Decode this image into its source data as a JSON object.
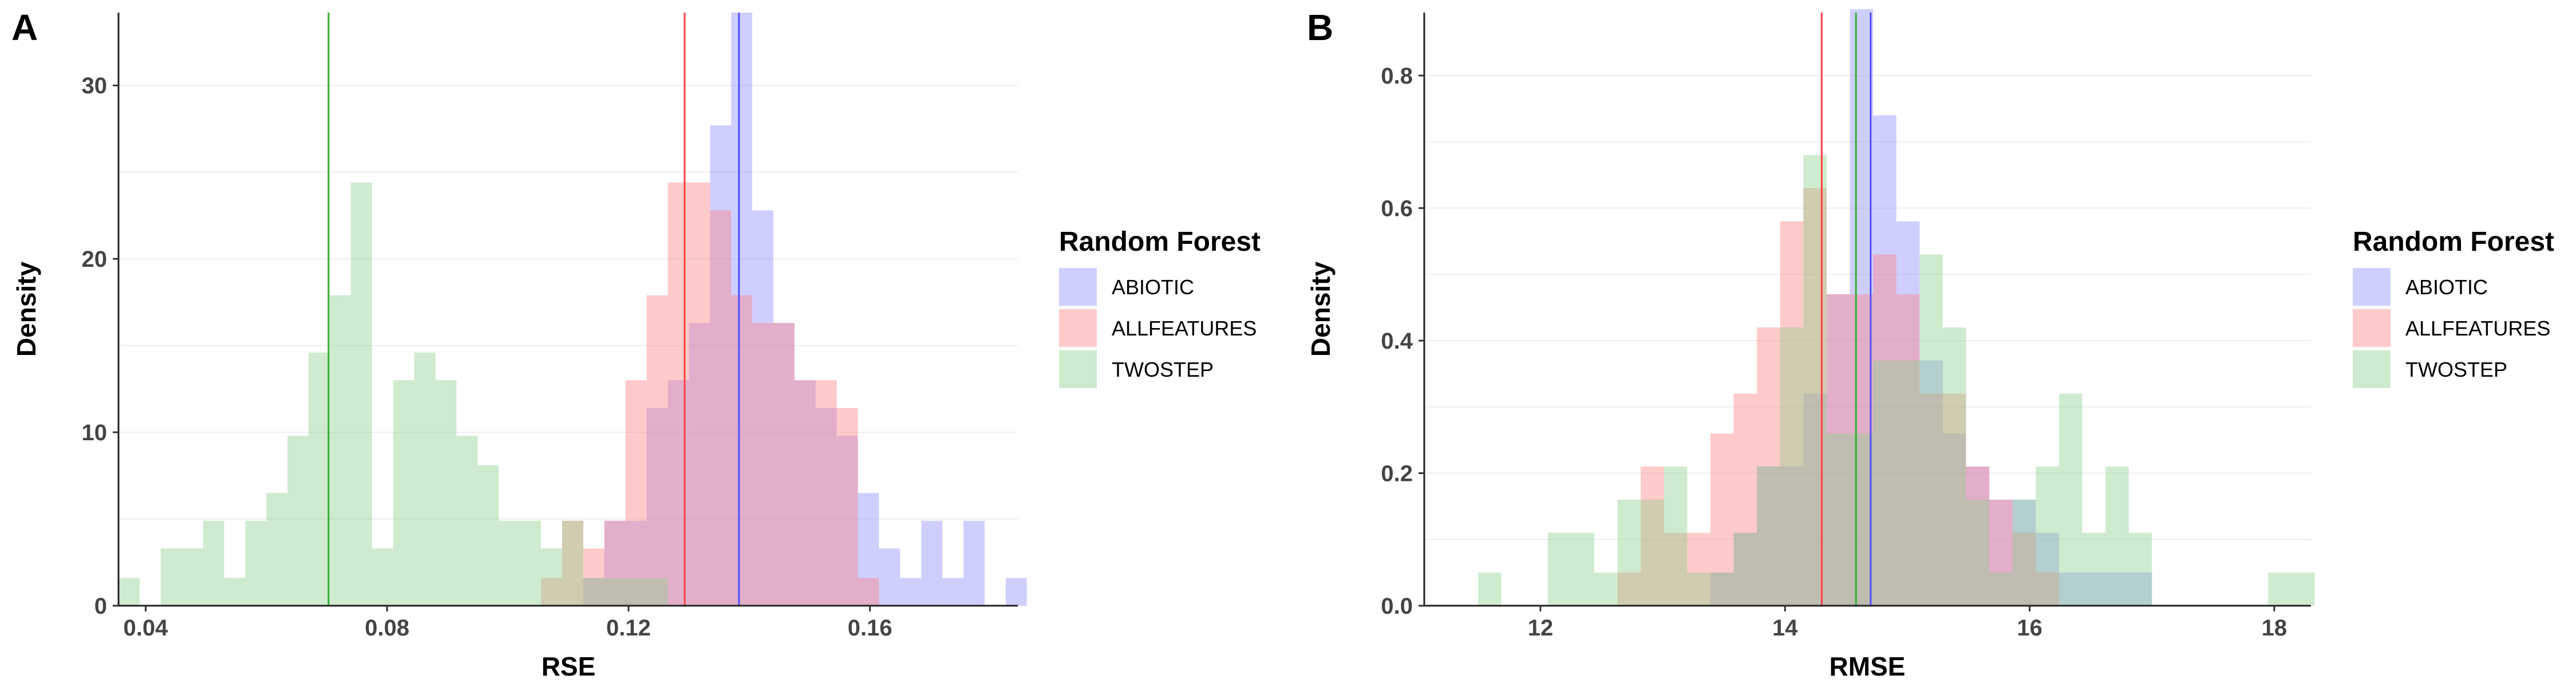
{
  "chart_data": [
    {
      "type": "histogram",
      "panel_label": "A",
      "xlabel": "RSE",
      "ylabel": "Density",
      "xlim": [
        0.0355,
        0.1845
      ],
      "ylim": [
        0,
        34.2
      ],
      "x_ticks": [
        0.04,
        0.08,
        0.12,
        0.16
      ],
      "x_tick_labels": [
        "0.04",
        "0.08",
        "0.12",
        "0.16"
      ],
      "y_ticks": [
        0,
        10,
        20,
        30
      ],
      "y_tick_labels": [
        "0",
        "10",
        "20",
        "30"
      ],
      "grid": "horizontal",
      "legend": {
        "title": "Random Forest",
        "placement": "right",
        "entries": [
          "ABIOTIC",
          "ALLFEATURES",
          "TWOSTEP"
        ]
      },
      "bin_width": 0.0035,
      "series": [
        {
          "name": "ABIOTIC",
          "color": "#8c8cff",
          "bins": [
            [
              0.1125,
              1.6
            ],
            [
              0.116,
              4.9
            ],
            [
              0.1195,
              4.9
            ],
            [
              0.123,
              11.4
            ],
            [
              0.1265,
              13.0
            ],
            [
              0.13,
              16.3
            ],
            [
              0.1335,
              27.7
            ],
            [
              0.137,
              34.2
            ],
            [
              0.1405,
              22.8
            ],
            [
              0.144,
              16.3
            ],
            [
              0.1475,
              13.0
            ],
            [
              0.151,
              11.4
            ],
            [
              0.1545,
              9.8
            ],
            [
              0.158,
              6.5
            ],
            [
              0.1615,
              3.3
            ],
            [
              0.165,
              1.6
            ],
            [
              0.1685,
              4.9
            ],
            [
              0.172,
              1.6
            ],
            [
              0.1755,
              4.9
            ],
            [
              0.179,
              0
            ],
            [
              0.1825,
              1.6
            ]
          ],
          "mean": 0.1383
        },
        {
          "name": "ALLFEATURES",
          "color": "#ff8080",
          "bins": [
            [
              0.1055,
              1.6
            ],
            [
              0.109,
              4.9
            ],
            [
              0.1125,
              3.3
            ],
            [
              0.116,
              4.9
            ],
            [
              0.1195,
              13.0
            ],
            [
              0.123,
              17.9
            ],
            [
              0.1265,
              24.4
            ],
            [
              0.13,
              24.4
            ],
            [
              0.1335,
              22.8
            ],
            [
              0.137,
              17.9
            ],
            [
              0.1405,
              16.3
            ],
            [
              0.144,
              16.3
            ],
            [
              0.1475,
              13.0
            ],
            [
              0.151,
              13.0
            ],
            [
              0.1545,
              11.4
            ],
            [
              0.158,
              1.6
            ]
          ],
          "mean": 0.1293
        },
        {
          "name": "TWOSTEP",
          "color": "#8cd08c",
          "bins": [
            [
              0.0355,
              1.6
            ],
            [
              0.039,
              0
            ],
            [
              0.0425,
              3.3
            ],
            [
              0.046,
              3.3
            ],
            [
              0.0495,
              4.9
            ],
            [
              0.053,
              1.6
            ],
            [
              0.0565,
              4.9
            ],
            [
              0.06,
              6.5
            ],
            [
              0.0635,
              9.8
            ],
            [
              0.067,
              14.6
            ],
            [
              0.0705,
              17.9
            ],
            [
              0.074,
              24.4
            ],
            [
              0.0775,
              3.3
            ],
            [
              0.081,
              13.0
            ],
            [
              0.0845,
              14.6
            ],
            [
              0.088,
              13.0
            ],
            [
              0.0915,
              9.8
            ],
            [
              0.095,
              8.1
            ],
            [
              0.0985,
              4.9
            ],
            [
              0.102,
              4.9
            ],
            [
              0.1055,
              3.3
            ],
            [
              0.109,
              4.9
            ],
            [
              0.1125,
              1.6
            ],
            [
              0.116,
              1.6
            ],
            [
              0.1195,
              1.6
            ],
            [
              0.123,
              1.6
            ],
            [
              0.1265,
              0
            ],
            [
              0.13,
              0
            ]
          ],
          "mean": 0.0703
        }
      ]
    },
    {
      "type": "histogram",
      "panel_label": "B",
      "xlabel": "RMSE",
      "ylabel": "Density",
      "xlim": [
        11.05,
        18.3
      ],
      "ylim": [
        0,
        0.895
      ],
      "x_ticks": [
        12,
        14,
        16,
        18
      ],
      "x_tick_labels": [
        "12",
        "14",
        "16",
        "18"
      ],
      "y_ticks": [
        0.0,
        0.2,
        0.4,
        0.6,
        0.8
      ],
      "y_tick_labels": [
        "0.0",
        "0.2",
        "0.4",
        "0.6",
        "0.8"
      ],
      "grid": "horizontal",
      "legend": {
        "title": "Random Forest",
        "placement": "right",
        "entries": [
          "ABIOTIC",
          "ALLFEATURES",
          "TWOSTEP"
        ]
      },
      "bin_width": 0.19,
      "series": [
        {
          "name": "ABIOTIC",
          "color": "#8c8cff",
          "bins": [
            [
              13.39,
              0.05
            ],
            [
              13.58,
              0.11
            ],
            [
              13.77,
              0.21
            ],
            [
              13.96,
              0.21
            ],
            [
              14.15,
              0.32
            ],
            [
              14.34,
              0.47
            ],
            [
              14.53,
              0.9
            ],
            [
              14.72,
              0.74
            ],
            [
              14.91,
              0.58
            ],
            [
              15.1,
              0.37
            ],
            [
              15.29,
              0.26
            ],
            [
              15.48,
              0.21
            ],
            [
              15.67,
              0.16
            ],
            [
              15.86,
              0.16
            ],
            [
              16.05,
              0.11
            ],
            [
              16.24,
              0.05
            ],
            [
              16.43,
              0.05
            ],
            [
              16.62,
              0.05
            ],
            [
              16.81,
              0.05
            ]
          ],
          "mean": 14.7
        },
        {
          "name": "ALLFEATURES",
          "color": "#ff8080",
          "bins": [
            [
              12.63,
              0.05
            ],
            [
              12.82,
              0.21
            ],
            [
              13.01,
              0.11
            ],
            [
              13.2,
              0.11
            ],
            [
              13.39,
              0.26
            ],
            [
              13.58,
              0.32
            ],
            [
              13.77,
              0.42
            ],
            [
              13.96,
              0.58
            ],
            [
              14.15,
              0.63
            ],
            [
              14.34,
              0.47
            ],
            [
              14.53,
              0.47
            ],
            [
              14.72,
              0.53
            ],
            [
              14.91,
              0.47
            ],
            [
              15.1,
              0.32
            ],
            [
              15.29,
              0.32
            ],
            [
              15.48,
              0.21
            ],
            [
              15.67,
              0.16
            ],
            [
              15.86,
              0.11
            ],
            [
              16.05,
              0.05
            ]
          ],
          "mean": 14.3
        },
        {
          "name": "TWOSTEP",
          "color": "#8cd08c",
          "bins": [
            [
              11.49,
              0.05
            ],
            [
              12.06,
              0.11
            ],
            [
              12.25,
              0.11
            ],
            [
              12.44,
              0.05
            ],
            [
              12.63,
              0.16
            ],
            [
              12.82,
              0.16
            ],
            [
              13.01,
              0.21
            ],
            [
              13.2,
              0.05
            ],
            [
              13.39,
              0.05
            ],
            [
              13.58,
              0.11
            ],
            [
              13.77,
              0.21
            ],
            [
              13.96,
              0.42
            ],
            [
              14.15,
              0.68
            ],
            [
              14.34,
              0.26
            ],
            [
              14.53,
              0.26
            ],
            [
              14.72,
              0.37
            ],
            [
              14.91,
              0.37
            ],
            [
              15.1,
              0.53
            ],
            [
              15.29,
              0.42
            ],
            [
              15.48,
              0.16
            ],
            [
              15.67,
              0.05
            ],
            [
              15.86,
              0.16
            ],
            [
              16.05,
              0.21
            ],
            [
              16.24,
              0.32
            ],
            [
              16.43,
              0.11
            ],
            [
              16.62,
              0.21
            ],
            [
              16.81,
              0.11
            ],
            [
              17.95,
              0.05
            ],
            [
              18.14,
              0.05
            ]
          ],
          "mean": 14.58
        }
      ]
    }
  ]
}
